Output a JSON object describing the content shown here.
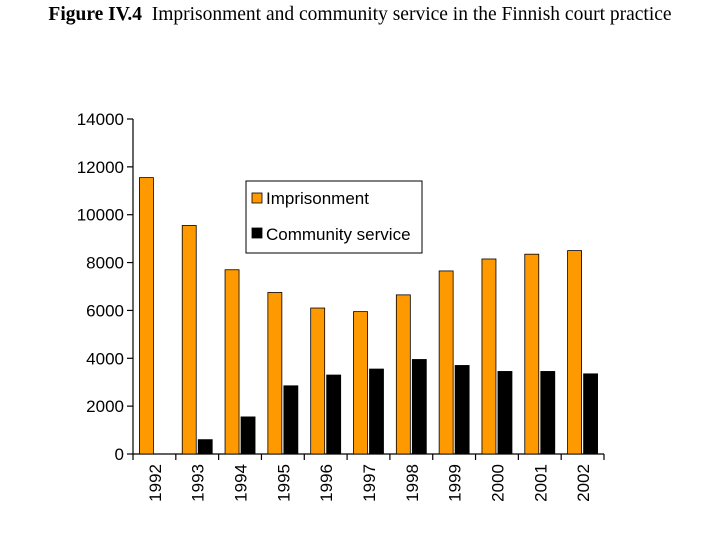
{
  "header": {
    "figure_label": "Figure IV.4",
    "caption": "Imprisonment and community service in the Finnish court practice"
  },
  "colors": {
    "imprisonment": "#FF9900",
    "community_service": "#000000"
  },
  "chart_data": {
    "type": "bar",
    "title": "Imprisonment and community service in the Finnish court practice",
    "xlabel": "",
    "ylabel": "",
    "categories": [
      "1992",
      "1993",
      "1994",
      "1995",
      "1996",
      "1997",
      "1998",
      "1999",
      "2000",
      "2001",
      "2002"
    ],
    "series": [
      {
        "name": "Imprisonment",
        "values": [
          11550,
          9550,
          7700,
          6750,
          6100,
          5950,
          6650,
          7650,
          8150,
          8350,
          8500
        ]
      },
      {
        "name": "Community service",
        "values": [
          0,
          600,
          1550,
          2850,
          3300,
          3550,
          3950,
          3700,
          3450,
          3450,
          3350
        ]
      }
    ],
    "ylim": [
      0,
      14000
    ],
    "yticks": [
      "0",
      "2000",
      "4000",
      "6000",
      "8000",
      "10000",
      "12000",
      "14000"
    ],
    "legend": {
      "position": "upper-center",
      "entries": [
        "Imprisonment",
        "Community service"
      ]
    },
    "grid": false
  }
}
